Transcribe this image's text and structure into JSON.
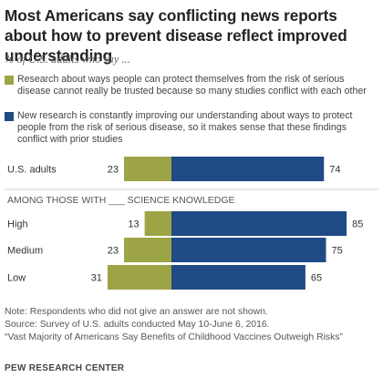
{
  "title": "Most Americans say conflicting news reports about how to prevent disease reflect improved understanding",
  "subtitle": "% of U.S. adults who say ...",
  "colors": {
    "untrusted": "#9da446",
    "improving": "#1f4a85"
  },
  "legend": [
    {
      "key": "untrusted",
      "text": "Research about ways people can protect themselves from the risk of serious disease cannot really be trusted because so many studies conflict with each other"
    },
    {
      "key": "improving",
      "text": "New research is constantly improving our understanding about ways to protect people from the risk of serious disease, so it makes sense that these findings conflict with prior studies"
    }
  ],
  "section_label": "AMONG THOSE WITH ___ SCIENCE KNOWLEDGE",
  "chart_data": {
    "type": "bar",
    "orientation": "horizontal-diverging",
    "categories": [
      "U.S. adults",
      "High",
      "Medium",
      "Low"
    ],
    "series": [
      {
        "key": "untrusted",
        "values": [
          23,
          13,
          23,
          31
        ]
      },
      {
        "key": "improving",
        "values": [
          74,
          85,
          75,
          65
        ]
      }
    ]
  },
  "notes": [
    "Note: Respondents who did not give an answer are not shown.",
    "Source: Survey of U.S. adults conducted May 10-June 6, 2016.",
    "“Vast Majority of Americans Say Benefits of Childhood Vaccines Outweigh Risks”"
  ],
  "source_org": "PEW RESEARCH CENTER"
}
